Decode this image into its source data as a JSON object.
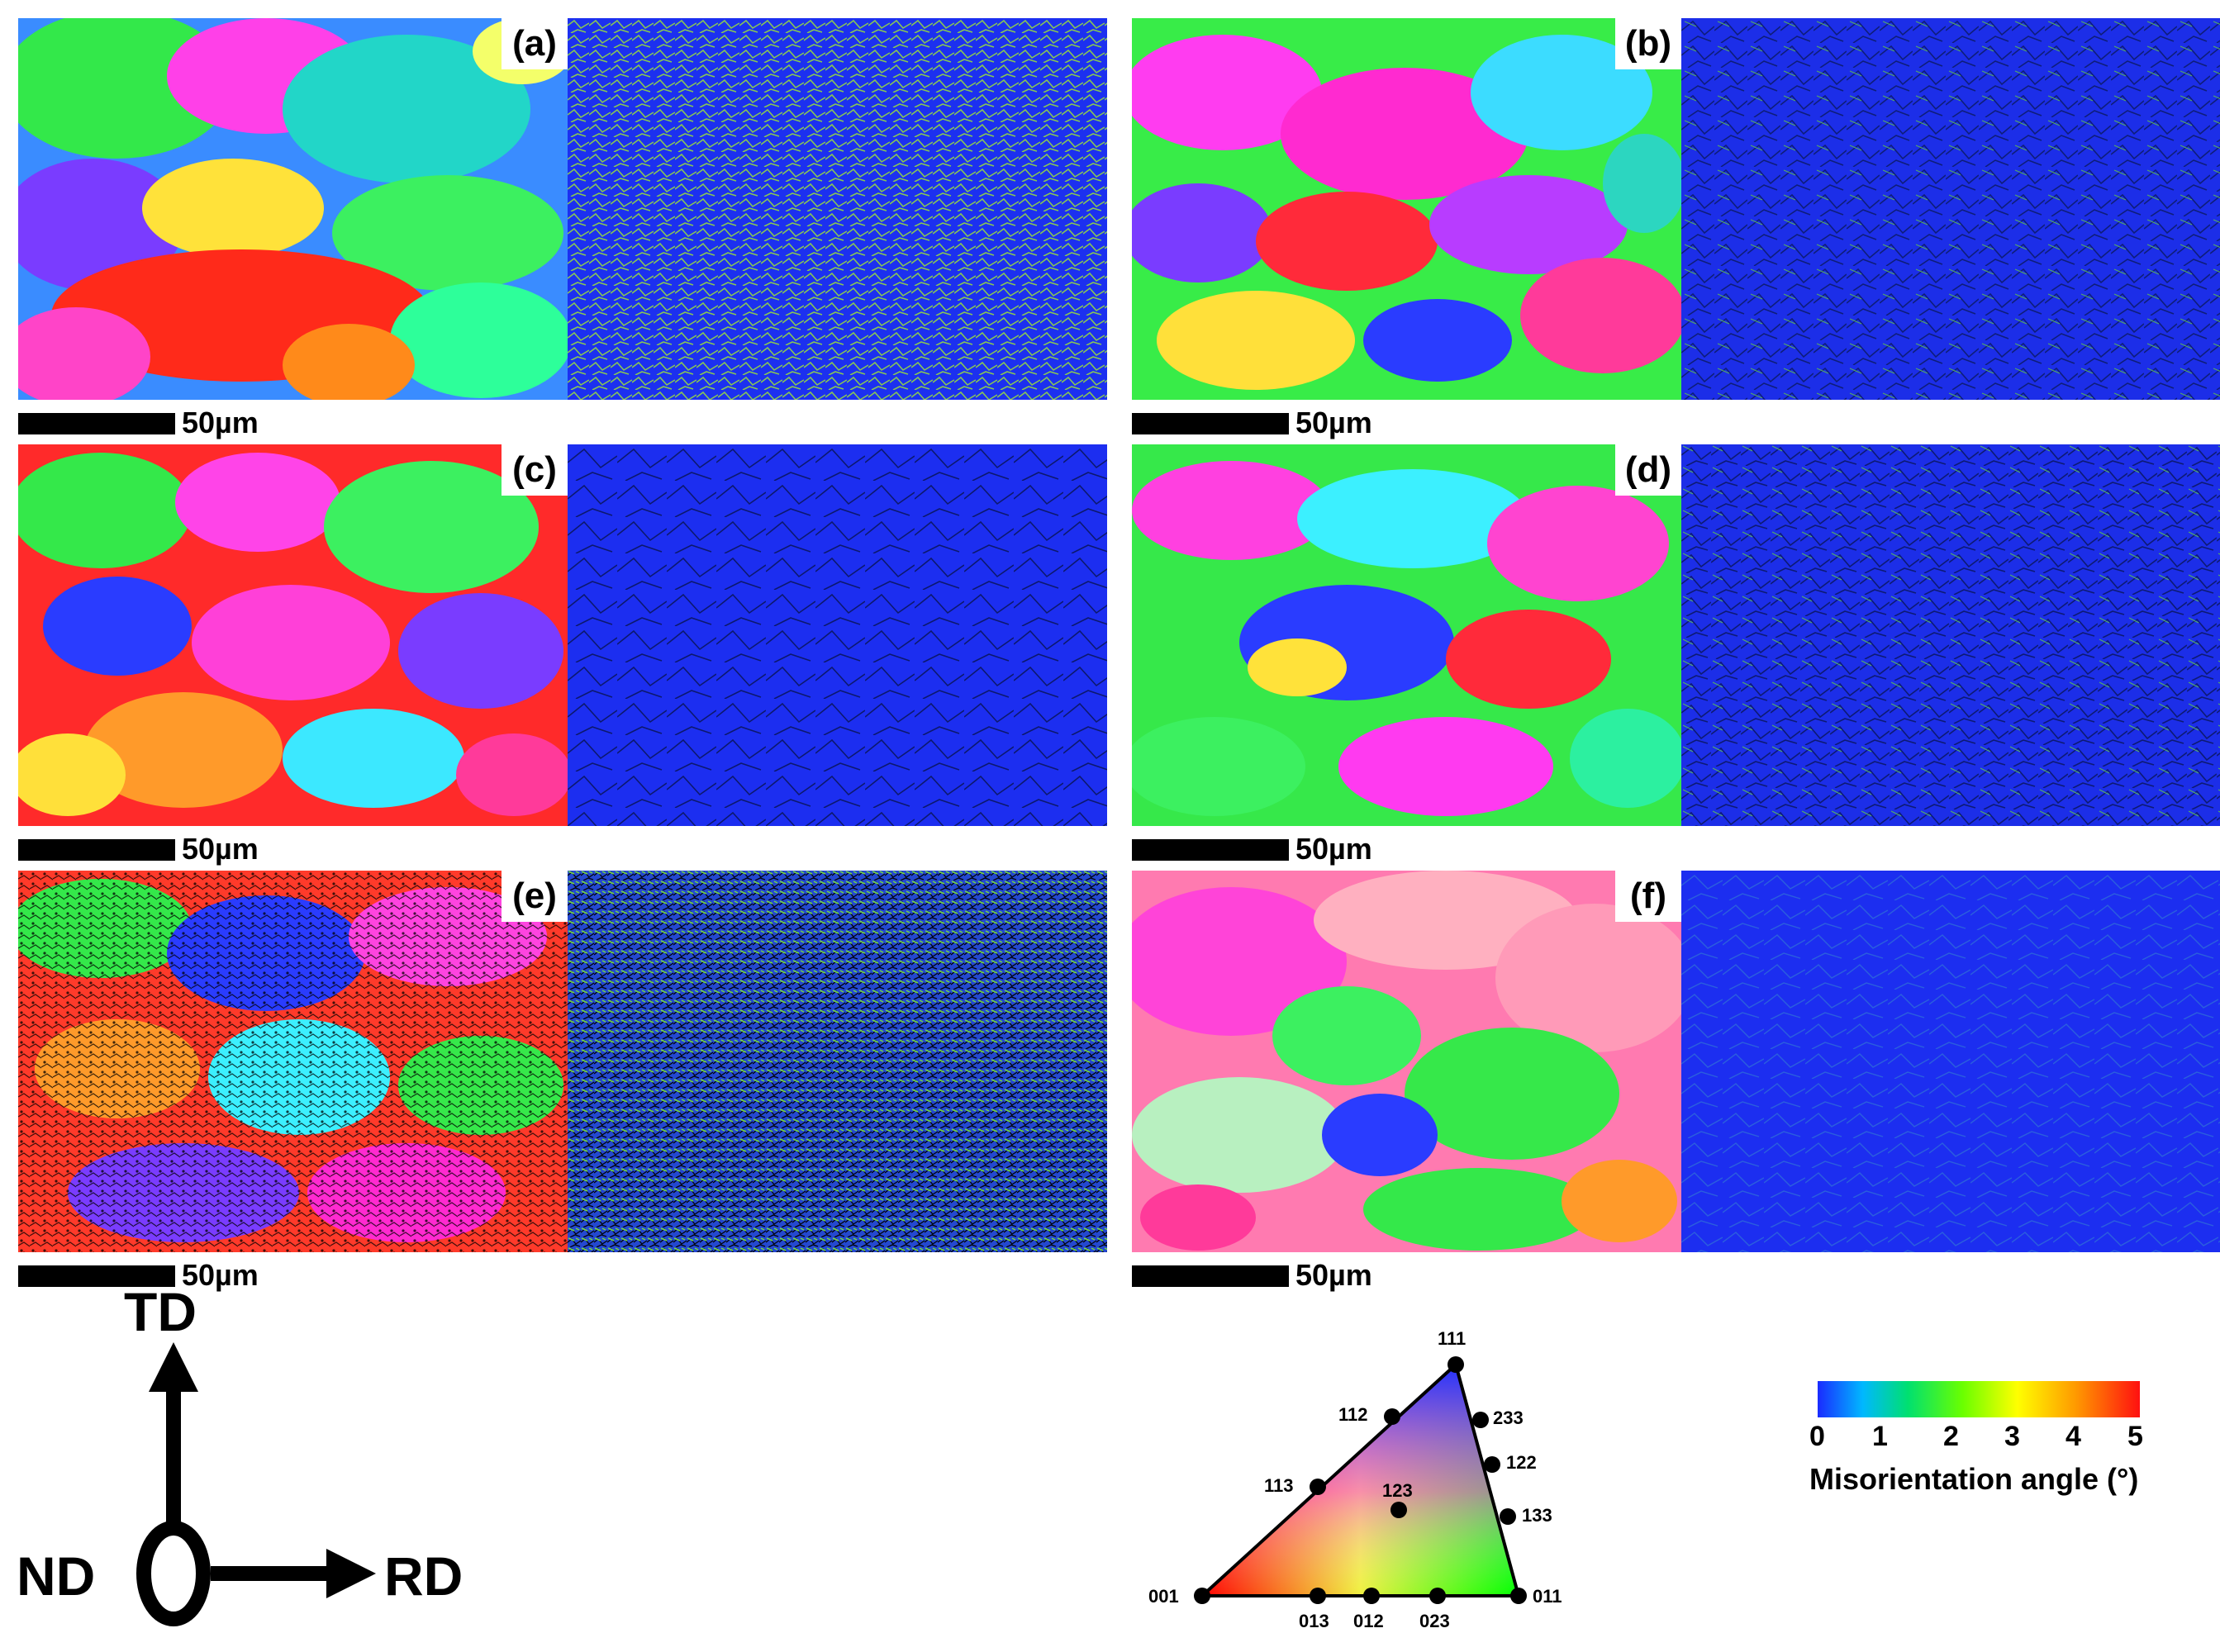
{
  "panels": [
    {
      "id": "a",
      "label": "(a)",
      "scale": "50µm"
    },
    {
      "id": "b",
      "label": "(b)",
      "scale": "50µm"
    },
    {
      "id": "c",
      "label": "(c)",
      "scale": "50µm"
    },
    {
      "id": "d",
      "label": "(d)",
      "scale": "50µm"
    },
    {
      "id": "e",
      "label": "(e)",
      "scale": "50µm"
    },
    {
      "id": "f",
      "label": "(f)",
      "scale": "50µm"
    }
  ],
  "axes": {
    "td": "TD",
    "nd": "ND",
    "rd": "RD"
  },
  "ipf_key": {
    "labels": {
      "p111": "111",
      "p112": "112",
      "p233": "233",
      "p122": "122",
      "p113": "113",
      "p123": "123",
      "p133": "133",
      "p001": "001",
      "p013": "013",
      "p012": "012",
      "p023": "023",
      "p011": "011"
    }
  },
  "misorientation_legend": {
    "ticks": [
      "0",
      "1",
      "2",
      "3",
      "4",
      "5"
    ],
    "title": "Misorientation angle (°)"
  },
  "colors": {
    "ipf_red": "#ff1a1a",
    "ipf_green": "#22e83a",
    "ipf_blue": "#2030ff",
    "ipf_magenta": "#ff3cf0",
    "kam_base": "#1a2cf5",
    "kam_line": "#7fd63a"
  }
}
